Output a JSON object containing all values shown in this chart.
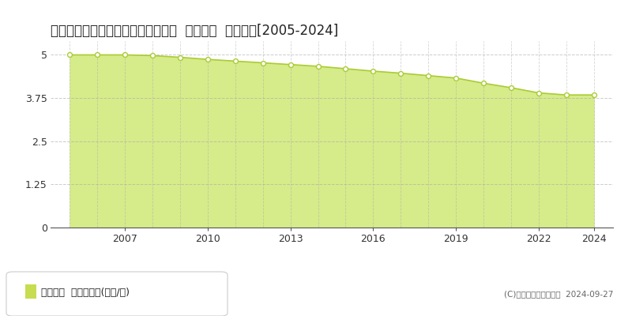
{
  "title": "石川県白山市河内町ふじが丘８３番  基準地価  地価推移[2005-2024]",
  "years": [
    2005,
    2006,
    2007,
    2008,
    2009,
    2010,
    2011,
    2012,
    2013,
    2014,
    2015,
    2016,
    2017,
    2018,
    2019,
    2020,
    2021,
    2022,
    2023,
    2024
  ],
  "values": [
    5.0,
    5.0,
    5.0,
    4.98,
    4.93,
    4.87,
    4.82,
    4.77,
    4.72,
    4.67,
    4.6,
    4.53,
    4.47,
    4.4,
    4.33,
    4.18,
    4.05,
    3.9,
    3.84,
    3.84
  ],
  "line_color": "#aacc33",
  "fill_color": "#d6eb8a",
  "marker_facecolor": "#ffffff",
  "marker_edgecolor": "#aacc33",
  "background_color": "#ffffff",
  "plot_bg_color": "#f5f5f5",
  "grid_color": "#aaaaaa",
  "yticks": [
    0,
    1.25,
    2.5,
    3.75,
    5
  ],
  "ylim": [
    0,
    5.4
  ],
  "xlim": [
    2004.3,
    2024.7
  ],
  "xticks": [
    2007,
    2010,
    2013,
    2016,
    2019,
    2022,
    2024
  ],
  "copyright_text": "(C)土地価格ドットコム  2024-09-27",
  "legend_label": "基準地価  平均坪単価(万円/坪)",
  "legend_square_color": "#c8dc50",
  "title_fontsize": 12,
  "tick_fontsize": 9,
  "legend_fontsize": 9
}
